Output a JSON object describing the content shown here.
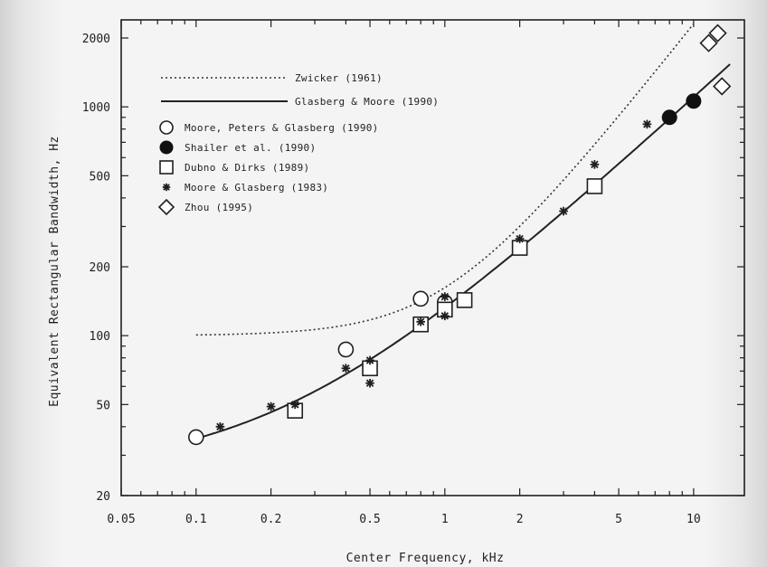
{
  "chart_data": {
    "type": "scatter",
    "title": "",
    "xlabel": "Center Frequency, kHz",
    "ylabel": "Equivalent Rectangular Bandwidth, Hz",
    "xscale": "log",
    "yscale": "log",
    "xlim": [
      0.05,
      16
    ],
    "ylim": [
      20,
      2400
    ],
    "x_ticks": [
      {
        "value": 0.05,
        "label": "0.05"
      },
      {
        "value": 0.1,
        "label": "0.1"
      },
      {
        "value": 0.2,
        "label": "0.2"
      },
      {
        "value": 0.5,
        "label": "0.5"
      },
      {
        "value": 1,
        "label": "1"
      },
      {
        "value": 2,
        "label": "2"
      },
      {
        "value": 5,
        "label": "5"
      },
      {
        "value": 10,
        "label": "10"
      }
    ],
    "y_ticks": [
      {
        "value": 20,
        "label": "20"
      },
      {
        "value": 50,
        "label": "50"
      },
      {
        "value": 100,
        "label": "100"
      },
      {
        "value": 200,
        "label": "200"
      },
      {
        "value": 500,
        "label": "500"
      },
      {
        "value": 1000,
        "label": "1000"
      },
      {
        "value": 2000,
        "label": "2000"
      }
    ],
    "grid": false,
    "legend_position": "top-left",
    "curves": [
      {
        "name": "Zwicker (1961)",
        "style": "dotted",
        "x_range": [
          0.1,
          15
        ]
      },
      {
        "name": "Glasberg & Moore (1990)",
        "style": "solid",
        "x_range": [
          0.1,
          14
        ]
      }
    ],
    "series": [
      {
        "name": "Moore, Peters & Glasberg (1990)",
        "marker": "open-circle",
        "points": [
          [
            0.1,
            36
          ],
          [
            0.4,
            87
          ],
          [
            0.8,
            145
          ],
          [
            1.0,
            140
          ]
        ]
      },
      {
        "name": "Shailer et al. (1990)",
        "marker": "filled-circle",
        "points": [
          [
            8.0,
            900
          ],
          [
            10.0,
            1060
          ]
        ]
      },
      {
        "name": "Dubno & Dirks (1989)",
        "marker": "open-square",
        "points": [
          [
            0.25,
            47
          ],
          [
            0.5,
            72
          ],
          [
            0.8,
            112
          ],
          [
            1.0,
            130
          ],
          [
            1.2,
            143
          ],
          [
            2.0,
            242
          ],
          [
            4.0,
            450
          ]
        ]
      },
      {
        "name": "Moore & Glasberg (1983)",
        "marker": "asterisk",
        "points": [
          [
            0.125,
            40
          ],
          [
            0.2,
            49
          ],
          [
            0.25,
            50
          ],
          [
            0.4,
            72
          ],
          [
            0.5,
            62
          ],
          [
            0.5,
            78
          ],
          [
            0.8,
            115
          ],
          [
            1.0,
            122
          ],
          [
            1.0,
            148
          ],
          [
            2.0,
            265
          ],
          [
            3.0,
            350
          ],
          [
            4.0,
            560
          ],
          [
            6.5,
            840
          ]
        ]
      },
      {
        "name": "Zhou (1995)",
        "marker": "open-diamond",
        "points": [
          [
            11.5,
            1900
          ],
          [
            12.5,
            2100
          ],
          [
            13.0,
            1230
          ]
        ]
      }
    ]
  }
}
